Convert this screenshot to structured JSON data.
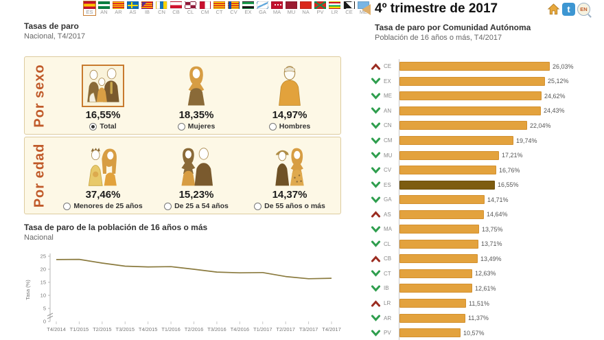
{
  "header": {
    "period_title": "4º trimestre de 2017",
    "icons": {
      "twitter_glyph": "t",
      "lang_label": "EN"
    }
  },
  "flag_bar": {
    "selected": "ES",
    "flags": [
      {
        "code": "ES"
      },
      {
        "code": "AN"
      },
      {
        "code": "AR"
      },
      {
        "code": "AS"
      },
      {
        "code": "IB"
      },
      {
        "code": "CN"
      },
      {
        "code": "CB"
      },
      {
        "code": "CL"
      },
      {
        "code": "CM"
      },
      {
        "code": "CT"
      },
      {
        "code": "CV"
      },
      {
        "code": "EX"
      },
      {
        "code": "GA"
      },
      {
        "code": "MA"
      },
      {
        "code": "MU"
      },
      {
        "code": "NA"
      },
      {
        "code": "PV"
      },
      {
        "code": "LR"
      },
      {
        "code": "CE"
      },
      {
        "code": "ME"
      }
    ]
  },
  "left_panel": {
    "title": "Tasas de paro",
    "subtitle": "Nacional, T4/2017",
    "por_sexo": {
      "label": "Por sexo",
      "items": [
        {
          "value": "16,55%",
          "option": "Total",
          "selected": true,
          "figure": "family-figure"
        },
        {
          "value": "18,35%",
          "option": "Mujeres",
          "selected": false,
          "figure": "woman-figure"
        },
        {
          "value": "14,97%",
          "option": "Hombres",
          "selected": false,
          "figure": "man-figure"
        }
      ]
    },
    "por_edad": {
      "label": "Por edad",
      "items": [
        {
          "value": "37,46%",
          "option": "Menores de 25 años",
          "selected": false,
          "figure": "young-couple-figure"
        },
        {
          "value": "15,23%",
          "option": "De 25 a 54 años",
          "selected": false,
          "figure": "adult-couple-figure"
        },
        {
          "value": "14,37%",
          "option": "De 55 años o más",
          "selected": false,
          "figure": "senior-couple-figure"
        }
      ]
    }
  },
  "chart_data": [
    {
      "type": "line",
      "title": "Tasa de paro de la población de 16 años o más",
      "subtitle": "Nacional",
      "ylabel": "Tasa (%)",
      "x": [
        "T4/2014",
        "T1/2015",
        "T2/2015",
        "T3/2015",
        "T4/2015",
        "T1/2016",
        "T2/2016",
        "T3/2016",
        "T4/2016",
        "T1/2017",
        "T2/2017",
        "T3/2017",
        "T4/2017"
      ],
      "values": [
        23.7,
        23.78,
        22.37,
        21.18,
        20.9,
        21.0,
        20.0,
        18.91,
        18.63,
        18.75,
        17.22,
        16.38,
        16.55
      ],
      "ylim": [
        0,
        25
      ],
      "yticks": [
        0,
        5,
        10,
        15,
        20,
        25
      ],
      "axis_break": true,
      "line_color": "#8a7a3e",
      "grid": false
    },
    {
      "type": "bar",
      "orientation": "horizontal",
      "title": "Tasa de paro por Comunidad Autónoma",
      "subtitle": "Población de 16 años o más, T4/2017",
      "xlim": [
        0,
        27
      ],
      "bar_color": "#e3a23d",
      "highlight_color": "#7d5c10",
      "up_color": "#9b2c21",
      "down_color": "#2f9e4e",
      "rows": [
        {
          "code": "CE",
          "value": 26.03,
          "label": "26,03%",
          "trend": "up",
          "highlight": false
        },
        {
          "code": "EX",
          "value": 25.12,
          "label": "25,12%",
          "trend": "down",
          "highlight": false
        },
        {
          "code": "ME",
          "value": 24.62,
          "label": "24,62%",
          "trend": "down",
          "highlight": false
        },
        {
          "code": "AN",
          "value": 24.43,
          "label": "24,43%",
          "trend": "down",
          "highlight": false
        },
        {
          "code": "CN",
          "value": 22.04,
          "label": "22,04%",
          "trend": "down",
          "highlight": false
        },
        {
          "code": "CM",
          "value": 19.74,
          "label": "19,74%",
          "trend": "down",
          "highlight": false
        },
        {
          "code": "MU",
          "value": 17.21,
          "label": "17,21%",
          "trend": "down",
          "highlight": false
        },
        {
          "code": "CV",
          "value": 16.76,
          "label": "16,76%",
          "trend": "down",
          "highlight": false
        },
        {
          "code": "ES",
          "value": 16.55,
          "label": "16,55%",
          "trend": "down",
          "highlight": true
        },
        {
          "code": "GA",
          "value": 14.71,
          "label": "14,71%",
          "trend": "down",
          "highlight": false
        },
        {
          "code": "AS",
          "value": 14.64,
          "label": "14,64%",
          "trend": "up",
          "highlight": false
        },
        {
          "code": "MA",
          "value": 13.75,
          "label": "13,75%",
          "trend": "down",
          "highlight": false
        },
        {
          "code": "CL",
          "value": 13.71,
          "label": "13,71%",
          "trend": "down",
          "highlight": false
        },
        {
          "code": "CB",
          "value": 13.49,
          "label": "13,49%",
          "trend": "up",
          "highlight": false
        },
        {
          "code": "CT",
          "value": 12.63,
          "label": "12,63%",
          "trend": "down",
          "highlight": false
        },
        {
          "code": "IB",
          "value": 12.61,
          "label": "12,61%",
          "trend": "down",
          "highlight": false
        },
        {
          "code": "LR",
          "value": 11.51,
          "label": "11,51%",
          "trend": "up",
          "highlight": false
        },
        {
          "code": "AR",
          "value": 11.37,
          "label": "11,37%",
          "trend": "down",
          "highlight": false
        },
        {
          "code": "PV",
          "value": 10.57,
          "label": "10,57%",
          "trend": "down",
          "highlight": false
        }
      ]
    }
  ],
  "colors": {
    "accent_orange": "#c05a2a",
    "bar_gold": "#e3a23d",
    "bar_highlight": "#7d5c10",
    "panel_cream": "#fdf8e6",
    "panel_border": "#ddcb9e",
    "trend_up_red": "#9b2c21",
    "trend_down_green": "#2f9e4e",
    "twitter_blue": "#3d96d2",
    "home_orange": "#e8a83c"
  }
}
